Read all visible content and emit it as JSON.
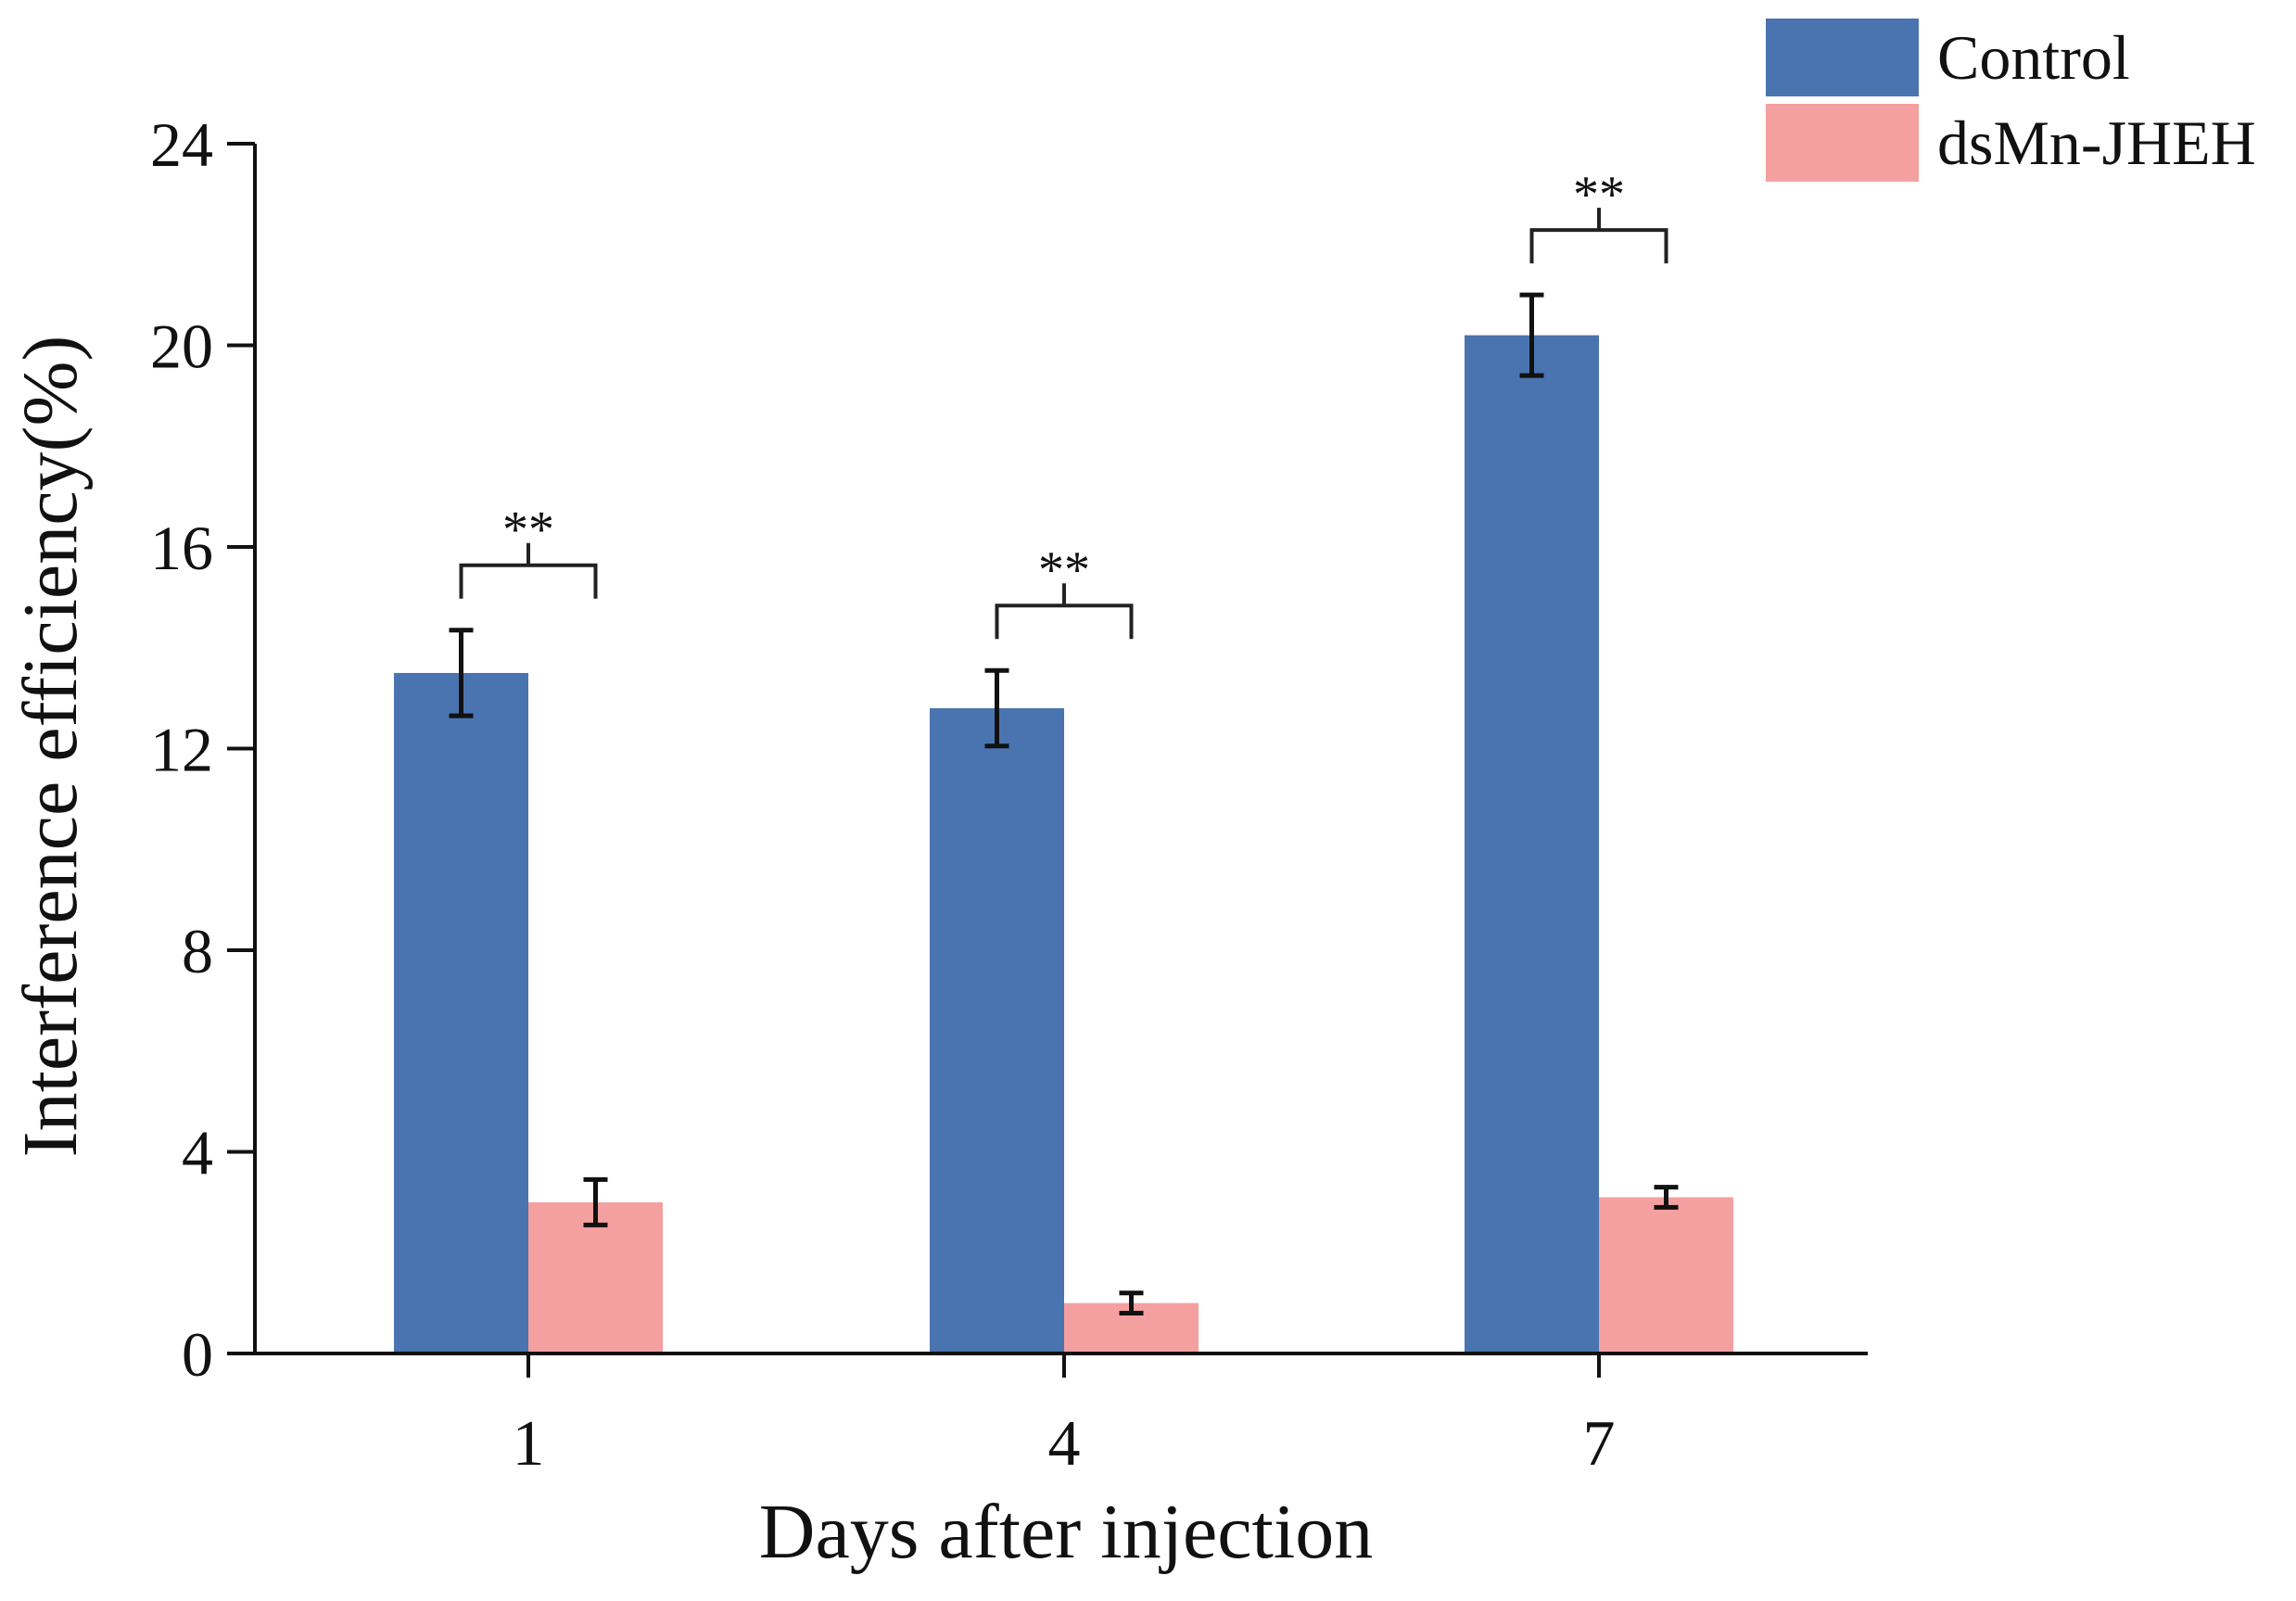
{
  "chart_data": {
    "type": "bar",
    "title": "",
    "xlabel": "Days after injection",
    "ylabel": "Interference efficiency(%)",
    "categories": [
      "1",
      "4",
      "7"
    ],
    "ylim": [
      0,
      24
    ],
    "yticks": [
      0,
      4,
      8,
      12,
      16,
      20,
      24
    ],
    "grid": false,
    "legend_position": "top-right",
    "series": [
      {
        "name": "Control",
        "color": "#4a74b0",
        "values": [
          13.5,
          12.8,
          20.2
        ],
        "errors": [
          0.85,
          0.75,
          0.8
        ]
      },
      {
        "name": "dsMn-JHEH",
        "color": "#f4a0a0",
        "values": [
          3.0,
          1.0,
          3.1
        ],
        "errors": [
          0.45,
          0.2,
          0.2
        ]
      }
    ],
    "annotations": [
      {
        "category": "1",
        "label": "**"
      },
      {
        "category": "4",
        "label": "**"
      },
      {
        "category": "7",
        "label": "**"
      }
    ]
  }
}
